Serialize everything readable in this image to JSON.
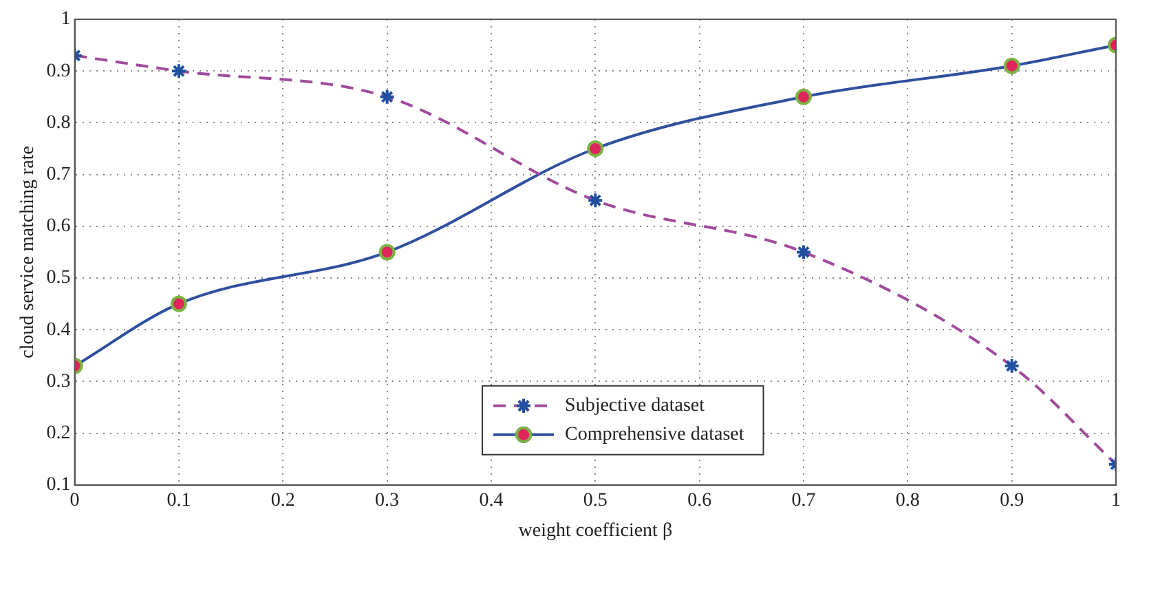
{
  "chart_data": {
    "type": "line",
    "xlabel": "weight coefficient β",
    "ylabel": "cloud service matching rate",
    "x": [
      0,
      0.1,
      0.3,
      0.5,
      0.7,
      0.9,
      1
    ],
    "series": [
      {
        "name": "Subjective dataset",
        "color": "#a04a9c",
        "marker": "cross",
        "line_style": "dashed",
        "values": [
          0.93,
          0.9,
          0.85,
          0.65,
          0.55,
          0.33,
          0.14
        ]
      },
      {
        "name": "Comprehensive dataset",
        "color": "#2f4f9f",
        "marker": "circle",
        "line_style": "solid",
        "values": [
          0.33,
          0.45,
          0.55,
          0.75,
          0.85,
          0.91,
          0.95
        ]
      }
    ],
    "xlim": [
      0,
      1
    ],
    "xticks": [
      0,
      0.1,
      0.2,
      0.3,
      0.4,
      0.5,
      0.6,
      0.7,
      0.8,
      0.9,
      1
    ],
    "ylim": [
      0.1,
      1
    ],
    "yticks": [
      0.1,
      0.2,
      0.3,
      0.4,
      0.5,
      0.6,
      0.7,
      0.8,
      0.9,
      1
    ],
    "grid": true,
    "legend": "bottom"
  }
}
